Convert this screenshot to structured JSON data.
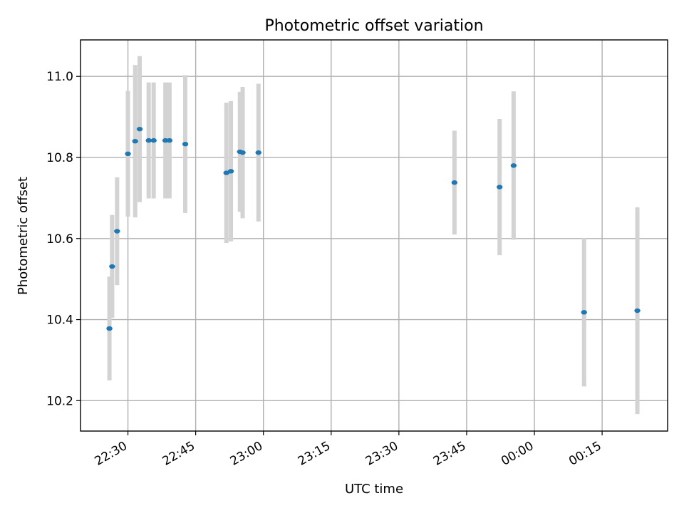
{
  "chart_data": {
    "type": "scatter",
    "title": "Photometric offset variation",
    "xlabel": "UTC time",
    "ylabel": "Photometric offset",
    "x_ticks": [
      "22:30",
      "22:45",
      "23:00",
      "23:15",
      "23:30",
      "23:45",
      "00:00",
      "00:15"
    ],
    "x_tick_minutes": [
      0,
      15,
      30,
      45,
      60,
      75,
      90,
      105
    ],
    "y_ticks": [
      "10.2",
      "10.4",
      "10.6",
      "10.8",
      "11.0"
    ],
    "y_tick_values": [
      10.2,
      10.4,
      10.6,
      10.8,
      11.0
    ],
    "xlim_minutes": [
      -10.5,
      119.5
    ],
    "ylim": [
      10.125,
      11.09
    ],
    "grid": true,
    "marker_color": "#1f77b4",
    "errorbar_color": "#d3d3d3",
    "points": [
      {
        "t": "22:25:54",
        "y": 10.378,
        "err": 0.128
      },
      {
        "t": "22:26:30",
        "y": 10.531,
        "err": 0.127
      },
      {
        "t": "22:27:36",
        "y": 10.618,
        "err": 0.133
      },
      {
        "t": "22:30:00",
        "y": 10.809,
        "err": 0.155
      },
      {
        "t": "22:31:36",
        "y": 10.84,
        "err": 0.188
      },
      {
        "t": "22:32:36",
        "y": 10.87,
        "err": 0.18
      },
      {
        "t": "22:34:36",
        "y": 10.842,
        "err": 0.143
      },
      {
        "t": "22:35:42",
        "y": 10.842,
        "err": 0.143
      },
      {
        "t": "22:38:18",
        "y": 10.842,
        "err": 0.143
      },
      {
        "t": "22:39:12",
        "y": 10.842,
        "err": 0.143
      },
      {
        "t": "22:42:42",
        "y": 10.833,
        "err": 0.17
      },
      {
        "t": "22:51:48",
        "y": 10.762,
        "err": 0.173
      },
      {
        "t": "22:52:48",
        "y": 10.766,
        "err": 0.173
      },
      {
        "t": "22:54:48",
        "y": 10.814,
        "err": 0.148
      },
      {
        "t": "22:55:24",
        "y": 10.812,
        "err": 0.162
      },
      {
        "t": "22:58:54",
        "y": 10.812,
        "err": 0.17
      },
      {
        "t": "23:42:18",
        "y": 10.738,
        "err": 0.128
      },
      {
        "t": "23:52:18",
        "y": 10.727,
        "err": 0.168
      },
      {
        "t": "23:55:24",
        "y": 10.78,
        "err": 0.183
      },
      {
        "t": "00:11:00",
        "y": 10.418,
        "err": 0.183
      },
      {
        "t": "00:22:48",
        "y": 10.422,
        "err": 0.255
      }
    ]
  }
}
